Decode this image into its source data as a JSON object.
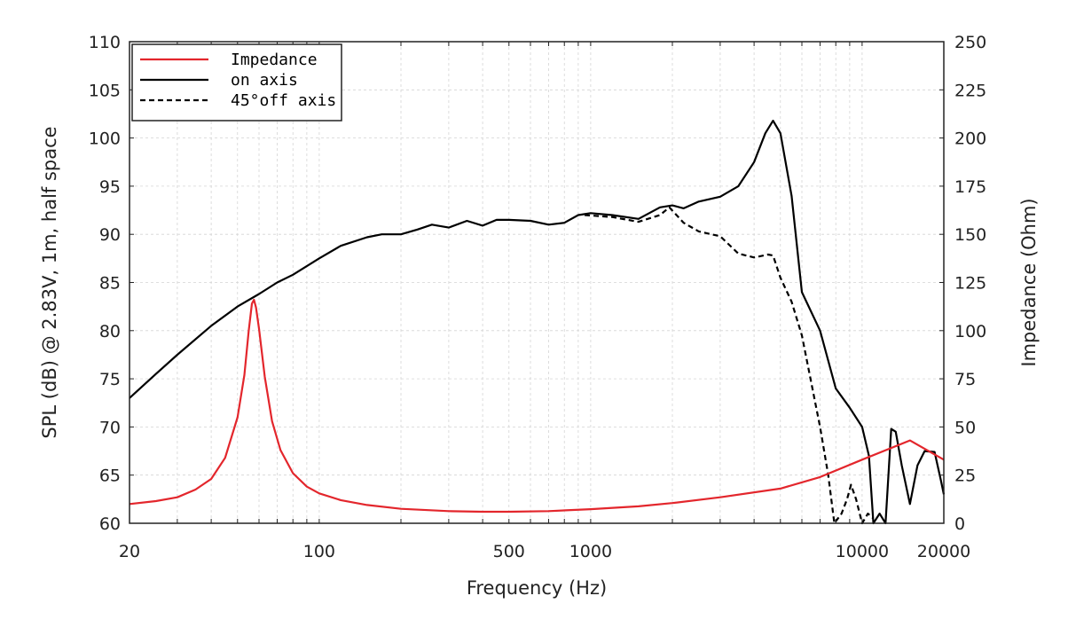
{
  "chart_data": {
    "type": "line",
    "xlabel": "Frequency (Hz)",
    "ylabel_left": "SPL (dB) @ 2.83V, 1m, half space",
    "ylabel_right": "Impedance (Ohm)",
    "x_scale": "log",
    "xlim": [
      20,
      20000
    ],
    "ylim_left": [
      60,
      110
    ],
    "ylim_right": [
      0,
      250
    ],
    "x_tick_labels": [
      "20",
      "100",
      "500",
      "1000",
      "10000",
      "20000"
    ],
    "left_tick_labels": [
      "60",
      "65",
      "70",
      "75",
      "80",
      "85",
      "90",
      "95",
      "100",
      "105",
      "110"
    ],
    "right_tick_labels": [
      "0",
      "25",
      "50",
      "75",
      "100",
      "125",
      "150",
      "175",
      "200",
      "225",
      "250"
    ],
    "grid": true,
    "legend_position": "top-left",
    "series": [
      {
        "name": "Impedance",
        "axis": "right",
        "color": "#e3262c",
        "dash": "solid",
        "points": [
          [
            20,
            10
          ],
          [
            25,
            11.5
          ],
          [
            30,
            13.5
          ],
          [
            35,
            17.5
          ],
          [
            40,
            23
          ],
          [
            45,
            34
          ],
          [
            50,
            55
          ],
          [
            53,
            77
          ],
          [
            55,
            100
          ],
          [
            56.5,
            114
          ],
          [
            57.5,
            116
          ],
          [
            58.5,
            112
          ],
          [
            60,
            101
          ],
          [
            63,
            76
          ],
          [
            67,
            53
          ],
          [
            72,
            38
          ],
          [
            80,
            26
          ],
          [
            90,
            19
          ],
          [
            100,
            15.5
          ],
          [
            120,
            12
          ],
          [
            150,
            9.5
          ],
          [
            200,
            7.5
          ],
          [
            300,
            6.3
          ],
          [
            400,
            6.0
          ],
          [
            500,
            6.0
          ],
          [
            700,
            6.3
          ],
          [
            1000,
            7.3
          ],
          [
            1500,
            8.8
          ],
          [
            2000,
            10.5
          ],
          [
            3000,
            13.5
          ],
          [
            5000,
            18
          ],
          [
            7000,
            24
          ],
          [
            10000,
            33
          ],
          [
            15000,
            43
          ],
          [
            20000,
            33
          ]
        ]
      },
      {
        "name": "on axis",
        "axis": "left",
        "color": "#000000",
        "dash": "solid",
        "points": [
          [
            20,
            73
          ],
          [
            25,
            75.5
          ],
          [
            30,
            77.5
          ],
          [
            40,
            80.5
          ],
          [
            50,
            82.5
          ],
          [
            60,
            83.8
          ],
          [
            70,
            85
          ],
          [
            80,
            85.8
          ],
          [
            100,
            87.5
          ],
          [
            120,
            88.8
          ],
          [
            150,
            89.7
          ],
          [
            170,
            90
          ],
          [
            200,
            90
          ],
          [
            230,
            90.5
          ],
          [
            260,
            91
          ],
          [
            300,
            90.7
          ],
          [
            350,
            91.4
          ],
          [
            400,
            90.9
          ],
          [
            450,
            91.5
          ],
          [
            500,
            91.5
          ],
          [
            600,
            91.4
          ],
          [
            700,
            91
          ],
          [
            800,
            91.2
          ],
          [
            900,
            92
          ],
          [
            1000,
            92.2
          ],
          [
            1200,
            92
          ],
          [
            1500,
            91.6
          ],
          [
            1800,
            92.8
          ],
          [
            2000,
            93
          ],
          [
            2200,
            92.7
          ],
          [
            2500,
            93.4
          ],
          [
            3000,
            93.9
          ],
          [
            3500,
            95
          ],
          [
            4000,
            97.5
          ],
          [
            4400,
            100.5
          ],
          [
            4700,
            101.8
          ],
          [
            5000,
            100.5
          ],
          [
            5500,
            94
          ],
          [
            6000,
            84
          ],
          [
            7000,
            80
          ],
          [
            8000,
            74
          ],
          [
            9000,
            72
          ],
          [
            10000,
            70
          ],
          [
            10600,
            67
          ],
          [
            11000,
            60
          ],
          [
            11600,
            61
          ],
          [
            12200,
            60
          ],
          [
            12800,
            69.8
          ],
          [
            13300,
            69.5
          ],
          [
            14000,
            66
          ],
          [
            15000,
            62
          ],
          [
            16000,
            66
          ],
          [
            17000,
            67.5
          ],
          [
            18500,
            67.4
          ],
          [
            19500,
            64.5
          ],
          [
            20000,
            63
          ]
        ]
      },
      {
        "name": "45°off axis",
        "axis": "left",
        "color": "#000000",
        "dash": "dashed",
        "points": [
          [
            950,
            92
          ],
          [
            1200,
            91.8
          ],
          [
            1500,
            91.3
          ],
          [
            1800,
            92
          ],
          [
            1950,
            92.8
          ],
          [
            2200,
            91.2
          ],
          [
            2500,
            90.3
          ],
          [
            3000,
            89.8
          ],
          [
            3500,
            88
          ],
          [
            4000,
            87.6
          ],
          [
            4500,
            87.9
          ],
          [
            4700,
            87.8
          ],
          [
            5000,
            85.5
          ],
          [
            5500,
            83
          ],
          [
            6000,
            79.5
          ],
          [
            7000,
            70
          ],
          [
            7500,
            65
          ],
          [
            7900,
            60
          ],
          [
            8400,
            61
          ],
          [
            8800,
            62.5
          ],
          [
            9100,
            64
          ],
          [
            9500,
            62.5
          ],
          [
            10000,
            60
          ],
          [
            10500,
            61
          ],
          [
            11000,
            60.5
          ]
        ]
      }
    ]
  }
}
